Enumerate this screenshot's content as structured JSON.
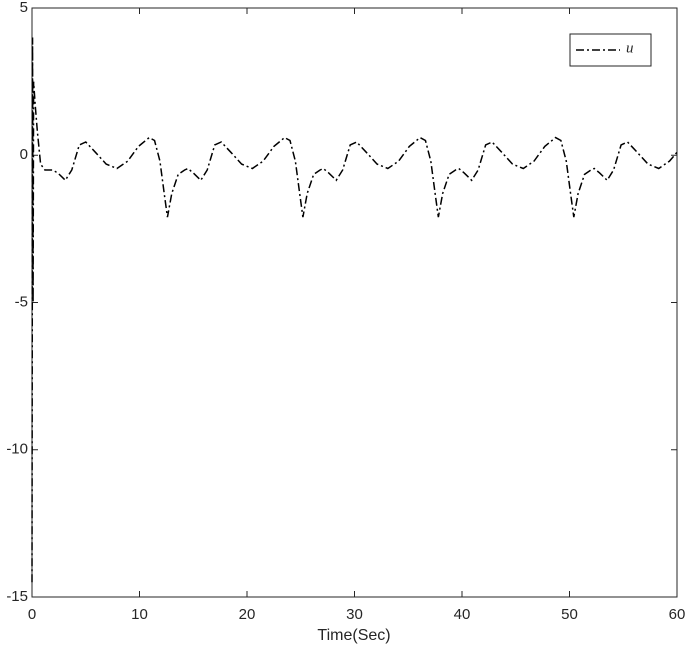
{
  "chart_data": {
    "type": "line",
    "xlabel": "Time(Sec)",
    "x": [
      0,
      0.05,
      0.1,
      0.15,
      0.3,
      0.5,
      0.8,
      1.2,
      1.9,
      2.4,
      3.1,
      3.7,
      4.4,
      5.0,
      5.9,
      6.9,
      7.9,
      8.9,
      9.9,
      10.9,
      11.4,
      11.9,
      12.3,
      12.6,
      13.0,
      13.6,
      14.2,
      14.5,
      15.0,
      15.7,
      16.3,
      17.0,
      17.6,
      18.5,
      19.5,
      20.5,
      21.5,
      22.5,
      23.5,
      24.0,
      24.5,
      24.9,
      25.2,
      25.6,
      26.2,
      26.8,
      27.1,
      27.6,
      28.3,
      28.9,
      29.6,
      30.2,
      31.1,
      32.1,
      33.1,
      34.1,
      35.1,
      36.1,
      36.6,
      37.1,
      37.5,
      37.8,
      38.2,
      38.8,
      39.4,
      39.7,
      40.2,
      40.9,
      41.5,
      42.2,
      42.8,
      43.7,
      44.7,
      45.7,
      46.7,
      47.7,
      48.7,
      49.2,
      49.7,
      50.1,
      50.4,
      50.8,
      51.4,
      52.0,
      52.3,
      52.8,
      53.5,
      54.1,
      54.8,
      55.4,
      56.3,
      57.3,
      58.3,
      59.3,
      60
    ],
    "series": [
      {
        "name": "u",
        "color": "#000000",
        "values": [
          -14.5,
          4.0,
          -5,
          2.5,
          1.7,
          0.8,
          -0.3,
          -0.5,
          -0.5,
          -0.6,
          -0.85,
          -0.5,
          0.35,
          0.45,
          0.1,
          -0.3,
          -0.45,
          -0.2,
          0.3,
          0.6,
          0.5,
          -0.2,
          -1.3,
          -2.1,
          -1.3,
          -0.65,
          -0.5,
          -0.45,
          -0.6,
          -0.85,
          -0.5,
          0.35,
          0.45,
          0.1,
          -0.3,
          -0.45,
          -0.2,
          0.3,
          0.6,
          0.5,
          -0.2,
          -1.3,
          -2.1,
          -1.3,
          -0.65,
          -0.5,
          -0.45,
          -0.6,
          -0.85,
          -0.5,
          0.35,
          0.45,
          0.1,
          -0.3,
          -0.45,
          -0.2,
          0.3,
          0.6,
          0.5,
          -0.2,
          -1.3,
          -2.1,
          -1.3,
          -0.65,
          -0.5,
          -0.45,
          -0.6,
          -0.85,
          -0.5,
          0.35,
          0.45,
          0.1,
          -0.3,
          -0.45,
          -0.2,
          0.3,
          0.6,
          0.5,
          -0.2,
          -1.3,
          -2.1,
          -1.3,
          -0.65,
          -0.5,
          -0.45,
          -0.6,
          -0.85,
          -0.5,
          0.35,
          0.45,
          0.1,
          -0.3,
          -0.45,
          -0.2,
          0.1
        ]
      }
    ],
    "xlim": [
      0,
      60
    ],
    "xticks": [
      0,
      10,
      20,
      30,
      40,
      50,
      60
    ],
    "ylim": [
      -15,
      5
    ],
    "yticks": [
      -15,
      -10,
      -5,
      0,
      5
    ],
    "legend": "upper-right",
    "grid": false
  }
}
